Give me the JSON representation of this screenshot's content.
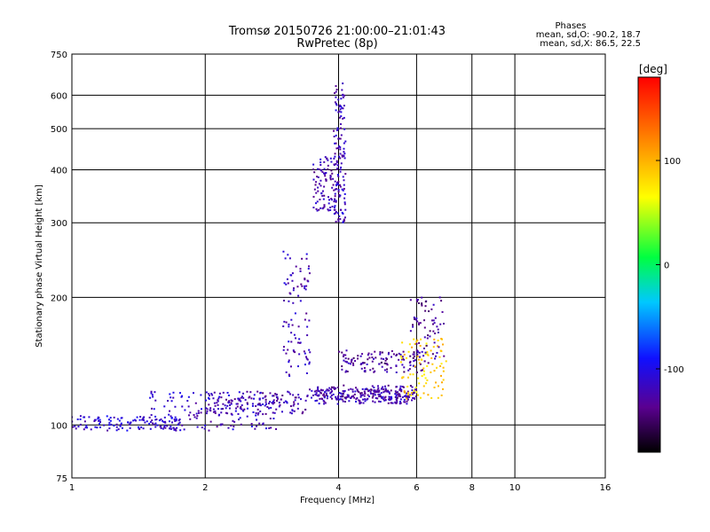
{
  "header": {
    "title_line1": "Tromsø 20150726 21:00:00–21:01:43",
    "title_line2": "RwPretec (8p)",
    "phases_title": "Phases",
    "phases_o": "mean, sd,O: -90.2, 18.7",
    "phases_x": "mean, sd,X:  86.5, 22.5"
  },
  "colorbar": {
    "unit_label": "[deg]",
    "tick_labels": [
      "100",
      "0",
      "-100"
    ],
    "tick_values": [
      100,
      0,
      -100
    ],
    "range": [
      -180,
      180
    ]
  },
  "chart_data": {
    "type": "scatter",
    "xlabel": "Frequency [MHz]",
    "ylabel": "Stationary phase Virtual Height [km]",
    "x_scale": "log",
    "y_scale": "log",
    "xlim": [
      1,
      16
    ],
    "ylim": [
      75,
      750
    ],
    "x_ticks": [
      1,
      2,
      4,
      6,
      8,
      10,
      16
    ],
    "x_tick_labels": [
      "1",
      "2",
      "4",
      "6",
      "8",
      "10",
      "16"
    ],
    "y_ticks": [
      75,
      100,
      200,
      300,
      400,
      500,
      600,
      750
    ],
    "y_tick_labels": [
      "75",
      "100",
      "200",
      "300",
      "400",
      "500",
      "600",
      "750"
    ],
    "grid": true,
    "traces": [
      {
        "x_range": [
          1.0,
          1.8
        ],
        "y_range": [
          97,
          105
        ],
        "phase": -110,
        "density": 120
      },
      {
        "x_range": [
          1.5,
          2.9
        ],
        "y_range": [
          97,
          120
        ],
        "phase": -115,
        "density": 180
      },
      {
        "x_range": [
          2.0,
          3.4
        ],
        "y_range": [
          106,
          120
        ],
        "phase": -125,
        "density": 110
      },
      {
        "x_range": [
          3.0,
          3.45
        ],
        "y_range": [
          130,
          260
        ],
        "phase": -120,
        "density": 90
      },
      {
        "x_range": [
          3.4,
          6.0
        ],
        "y_range": [
          112,
          122
        ],
        "phase": -120,
        "density": 170
      },
      {
        "x_range": [
          3.5,
          6.0
        ],
        "y_range": [
          115,
          124
        ],
        "phase": -130,
        "density": 120
      },
      {
        "x_range": [
          4.0,
          6.2
        ],
        "y_range": [
          133,
          150
        ],
        "phase": -130,
        "density": 120
      },
      {
        "x_range": [
          3.5,
          4.05
        ],
        "y_range": [
          320,
          430
        ],
        "phase": -125,
        "density": 100
      },
      {
        "x_range": [
          3.9,
          4.15
        ],
        "y_range": [
          300,
          640
        ],
        "phase": -118,
        "density": 120
      },
      {
        "x_range": [
          5.5,
          7.0
        ],
        "y_range": [
          115,
          160
        ],
        "phase": 85,
        "density": 90
      },
      {
        "x_range": [
          5.8,
          7.0
        ],
        "y_range": [
          140,
          200
        ],
        "phase": -130,
        "density": 70
      }
    ]
  }
}
